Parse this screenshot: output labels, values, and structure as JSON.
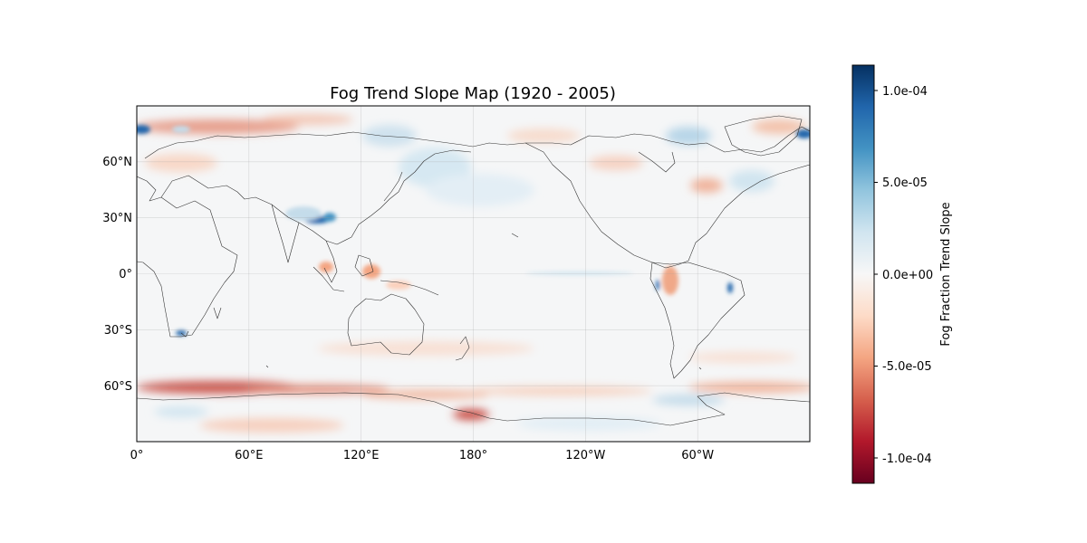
{
  "map": {
    "title": "Fog Trend Slope Map (1920 - 2005)",
    "lat_ticks": [
      {
        "label": "60°N",
        "value": 60
      },
      {
        "label": "30°N",
        "value": 30
      },
      {
        "label": "0°",
        "value": 0
      },
      {
        "label": "30°S",
        "value": -30
      },
      {
        "label": "60°S",
        "value": -60
      }
    ],
    "lon_ticks": [
      {
        "label": "0°",
        "value": 0
      },
      {
        "label": "60°E",
        "value": 60
      },
      {
        "label": "120°E",
        "value": 120
      },
      {
        "label": "180°",
        "value": 180
      },
      {
        "label": "120°W",
        "value": 240
      },
      {
        "label": "60°W",
        "value": 300
      }
    ],
    "lon_range": [
      0,
      360
    ],
    "lat_range": [
      -90,
      90
    ],
    "projection": "PlateCarree, central longitude 180",
    "gridlines": true
  },
  "colorbar": {
    "label": "Fog Fraction Trend Slope",
    "colormap": "RdBu",
    "min": -0.000112,
    "max": 0.000112,
    "ticks": [
      {
        "label": "1.0e-04",
        "value": 0.0001
      },
      {
        "label": "5.0e-05",
        "value": 5e-05
      },
      {
        "label": "0.0e+00",
        "value": 0
      },
      {
        "label": "-5.0e-05",
        "value": -5e-05
      },
      {
        "label": "-1.0e-04",
        "value": -0.0001
      }
    ],
    "colors": {
      "high": "#053061",
      "mid": "#f7f7f7",
      "low": "#67001f"
    }
  }
}
